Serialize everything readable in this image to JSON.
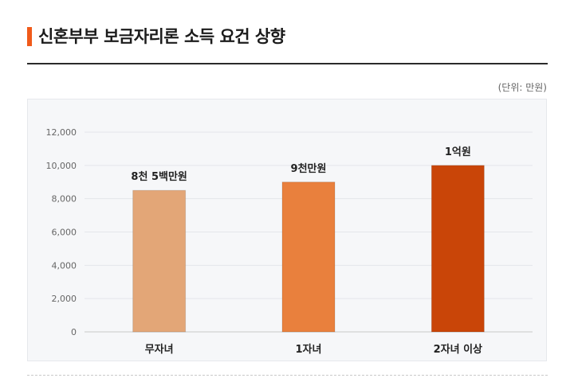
{
  "header": {
    "title": "신혼부부 보금자리론 소득 요건 상향",
    "unit_note": "(단위: 만원)",
    "accent_color": "#f05a1a"
  },
  "chart_data": {
    "type": "bar",
    "title": "신혼부부 보금자리론 소득 요건 상향",
    "xlabel": "",
    "ylabel": "",
    "categories": [
      "무자녀",
      "1자녀",
      "2자녀 이상"
    ],
    "values": [
      8500,
      9000,
      10000
    ],
    "data_labels": [
      "8천 5백만원",
      "9천만원",
      "1억원"
    ],
    "bar_colors": [
      "#e3a677",
      "#e9803d",
      "#c94508"
    ],
    "ylim": [
      0,
      12000
    ],
    "yticks": [
      0,
      2000,
      4000,
      6000,
      8000,
      10000,
      12000
    ],
    "ytick_labels": [
      "0",
      "2,000",
      "4,000",
      "6,000",
      "8,000",
      "10,000",
      "12,000"
    ],
    "grid": true,
    "legend": "none"
  }
}
